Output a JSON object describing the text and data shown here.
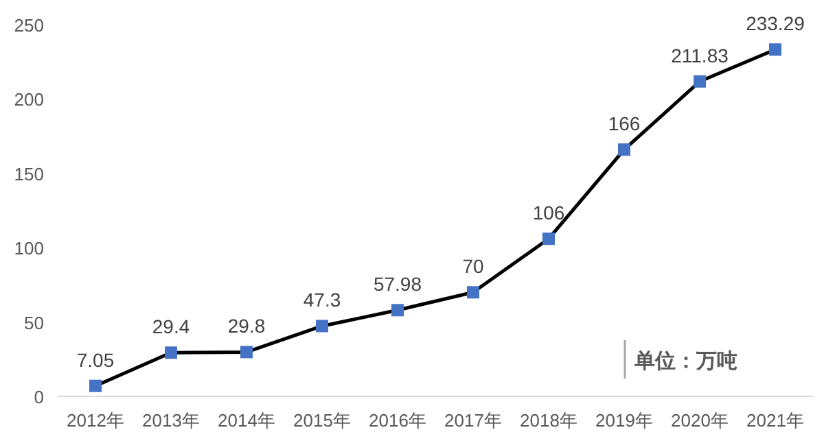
{
  "chart_data": {
    "type": "line",
    "categories": [
      "2012年",
      "2013年",
      "2014年",
      "2015年",
      "2016年",
      "2017年",
      "2018年",
      "2019年",
      "2020年",
      "2021年"
    ],
    "values": [
      7.05,
      29.4,
      29.8,
      47.3,
      57.98,
      70,
      106,
      166,
      211.83,
      233.29
    ],
    "color": "#4472c4",
    "marker": "square",
    "line_style": "solid",
    "data_labels": true,
    "grid": false,
    "ylim": [
      0,
      250
    ],
    "yticks": [
      0,
      50,
      100,
      150,
      200,
      250
    ],
    "annotations": [
      "单位：万吨"
    ]
  }
}
